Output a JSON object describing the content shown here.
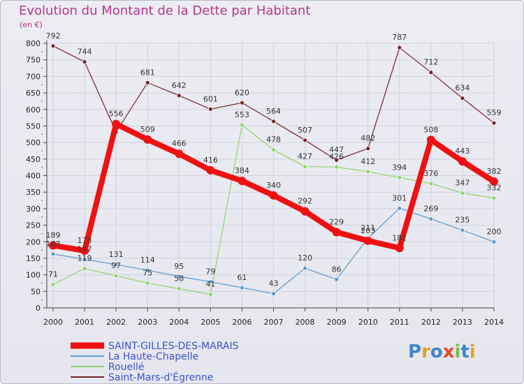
{
  "chart_data": {
    "type": "line",
    "title": "Evolution du Montant de la Dette par Habitant",
    "subtitle": "(en €)",
    "x": [
      2000,
      2001,
      2002,
      2003,
      2004,
      2005,
      2006,
      2007,
      2008,
      2009,
      2010,
      2011,
      2012,
      2013,
      2014
    ],
    "ylim": [
      0,
      800
    ],
    "yticks": [
      0,
      50,
      100,
      150,
      200,
      250,
      300,
      350,
      400,
      450,
      500,
      550,
      600,
      650,
      700,
      750,
      800
    ],
    "grid": true,
    "legend_position": "bottom-left",
    "series": [
      {
        "name": "Saint-Mars-d'Égrenne",
        "color": "#722525",
        "width": 1.2,
        "values": [
          792,
          744,
          532,
          681,
          642,
          601,
          620,
          564,
          507,
          447,
          482,
          787,
          712,
          634,
          559
        ],
        "labels": [
          "792",
          "744",
          "",
          "681",
          "642",
          "601",
          "620",
          "564",
          "507",
          "447",
          "482",
          "787",
          "712",
          "634",
          "559"
        ]
      },
      {
        "name": "Rouellé",
        "color": "#8fd36a",
        "width": 1.2,
        "values": [
          71,
          119,
          97,
          75,
          58,
          41,
          553,
          478,
          427,
          426,
          412,
          394,
          376,
          347,
          332
        ],
        "labels": [
          "71",
          "119",
          "97",
          "75",
          "58",
          "41",
          "553",
          "478",
          "427",
          "426",
          "412",
          "394",
          "376",
          "347",
          "332"
        ]
      },
      {
        "name": "La Haute-Chapelle",
        "color": "#5a9bd0",
        "width": 1.2,
        "values": [
          163,
          147,
          131,
          114,
          95,
          79,
          61,
          43,
          120,
          86,
          211,
          301,
          269,
          235,
          200
        ],
        "labels": [
          "163",
          "147",
          "131",
          "114",
          "95",
          "79",
          "61",
          "43",
          "120",
          "86",
          "211",
          "301",
          "269",
          "235",
          "200"
        ]
      },
      {
        "name": "SAINT-GILLES-DES-MARAIS",
        "color": "#ee1111",
        "width": 8,
        "values": [
          189,
          173,
          556,
          509,
          466,
          416,
          384,
          340,
          292,
          229,
          203,
          181,
          508,
          443,
          382
        ],
        "labels": [
          "189",
          "173",
          "556",
          "509",
          "466",
          "416",
          "384",
          "340",
          "292",
          "229",
          "203",
          "181",
          "508",
          "443",
          "382"
        ]
      }
    ]
  },
  "legend": [
    {
      "name": "SAINT-GILLES-DES-MARAIS",
      "color": "#ee1111",
      "text_color": "#3a55c8"
    },
    {
      "name": "La Haute-Chapelle",
      "color": "#5a9bd0",
      "text_color": "#3a55c8"
    },
    {
      "name": "Rouellé",
      "color": "#8fd36a",
      "text_color": "#3a55c8"
    },
    {
      "name": "Saint-Mars-d'Égrenne",
      "color": "#722525",
      "text_color": "#3a55c8"
    }
  ],
  "logo": {
    "letters": [
      "P",
      "r",
      "o",
      "x",
      "i",
      "t",
      "i"
    ],
    "colors": [
      "#3f86c9",
      "#e2a321",
      "#3f86c9",
      "#e24a22",
      "#78b94b",
      "#3f86c9",
      "#e2a321"
    ]
  }
}
